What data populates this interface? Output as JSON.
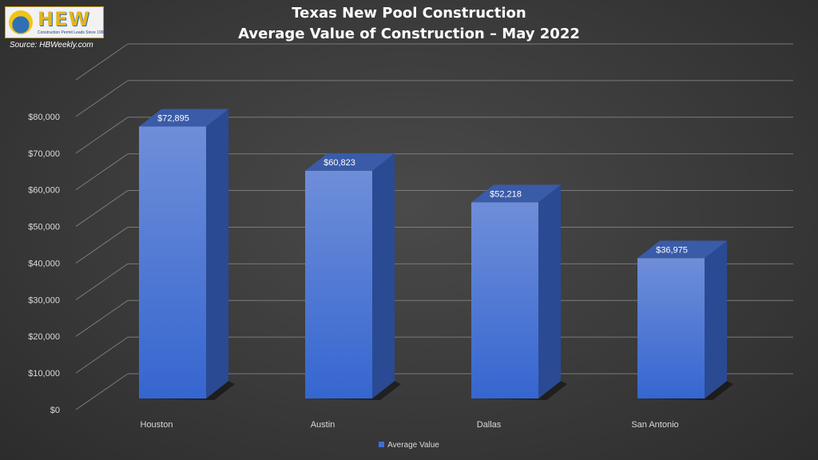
{
  "logo": {
    "mark": "HEW",
    "tagline": "Construction Permit Leads Since 1996"
  },
  "source": "Source: HBWeekly.com",
  "chart_data": {
    "type": "bar",
    "title": "Texas New Pool Construction",
    "subtitle": "Average Value of Construction – May 2022",
    "categories": [
      "Houston",
      "Austin",
      "Dallas",
      "San Antonio"
    ],
    "series": [
      {
        "name": "Average Value",
        "values": [
          72895,
          60823,
          52218,
          36975
        ],
        "color": "#3f6fd6"
      }
    ],
    "data_labels": [
      "$72,895",
      "$60,823",
      "$52,218",
      "$36,975"
    ],
    "ylim": [
      0,
      90000
    ],
    "yticks": [
      0,
      10000,
      20000,
      30000,
      40000,
      50000,
      60000,
      70000,
      80000
    ],
    "ytick_labels": [
      "$0",
      "$10,000",
      "$20,000",
      "$30,000",
      "$40,000",
      "$50,000",
      "$60,000",
      "$70,000",
      "$80,000"
    ],
    "grid": true,
    "legend": "bottom",
    "style": "3d-column"
  }
}
